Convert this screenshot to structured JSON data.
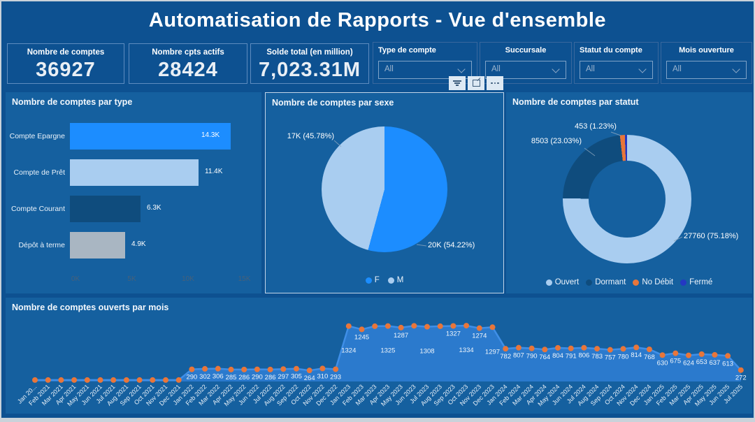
{
  "header": {
    "title": "Automatisation de Rapports - Vue d'ensemble"
  },
  "kpis": [
    {
      "label": "Nombre de comptes",
      "value": "36927"
    },
    {
      "label": "Nombre cpts actifs",
      "value": "28424"
    },
    {
      "label": "Solde total (en million)",
      "value": "7,023.31M"
    }
  ],
  "filters": [
    {
      "label": "Type de compte",
      "value": "All"
    },
    {
      "label": "Succursale",
      "value": "All"
    },
    {
      "label": "Statut du compte",
      "value": "All"
    },
    {
      "label": "Mois ouverture",
      "value": "All"
    }
  ],
  "toolbar": {
    "icons": [
      "filter-icon",
      "focus-mode-icon",
      "more-options-icon"
    ]
  },
  "colors": {
    "page_bg": "#0d5191",
    "panel_bg": "#15609f",
    "bright_blue": "#1c8dff",
    "light_blue": "#a9cdf0",
    "dark_navy": "#0f4c7d",
    "gray": "#a9b6c2",
    "orange": "#e8763a",
    "deep_blue": "#2438c3",
    "line_blue": "#3f8fe8",
    "area_fill": "#2b7acd"
  },
  "chart_data": [
    {
      "type": "bar",
      "title": "Nombre de comptes par type",
      "orientation": "horizontal",
      "categories": [
        "Compte Epargne",
        "Compte de Prêt",
        "Compte Courant",
        "Dépôt à terme"
      ],
      "values": [
        14300,
        11400,
        6300,
        4900
      ],
      "value_labels": [
        "14.3K",
        "11.4K",
        "6.3K",
        "4.9K"
      ],
      "bar_colors": [
        "#1c8dff",
        "#a9cdf0",
        "#0f4c7d",
        "#a9b6c2"
      ],
      "x_ticks": [
        "0K",
        "5K",
        "10K",
        "15K"
      ],
      "xlim": [
        0,
        15500
      ],
      "grid": false
    },
    {
      "type": "pie",
      "title": "Nombre de comptes par sexe",
      "slices": [
        {
          "name": "F",
          "value": "20K",
          "pct": 54.22,
          "label": "20K (54.22%)",
          "color": "#1c8dff"
        },
        {
          "name": "M",
          "value": "17K",
          "pct": 45.78,
          "label": "17K (45.78%)",
          "color": "#a9cdf0"
        }
      ],
      "legend_position": "bottom"
    },
    {
      "type": "donut",
      "title": "Nombre de comptes par statut",
      "slices": [
        {
          "name": "Ouvert",
          "value": "27760",
          "pct": 75.18,
          "label": "27760 (75.18%)",
          "color": "#a9cdf0"
        },
        {
          "name": "Dormant",
          "value": "8503",
          "pct": 23.03,
          "label": "8503 (23.03%)",
          "color": "#0f4c7d"
        },
        {
          "name": "No Débit",
          "value": "453",
          "pct": 1.23,
          "label": "453 (1.23%)",
          "color": "#e8763a"
        },
        {
          "name": "Fermé",
          "value": "",
          "pct": 0.56,
          "label": "",
          "color": "#2438c3"
        }
      ],
      "legend_position": "bottom"
    },
    {
      "type": "area-line",
      "title": "Nombre de comptes ouverts par mois",
      "x": [
        "Jan 20...",
        "Feb 2021",
        "Mar 2021",
        "Apr 2021",
        "May 2021",
        "Jun 2021",
        "Jul 2021",
        "Aug 2021",
        "Sep 2021",
        "Oct 2021",
        "Nov 2021",
        "Dec 2021",
        "Jan 2022",
        "Feb 2022",
        "Mar 2022",
        "Apr 2022",
        "May 2022",
        "Jun 2022",
        "Jul 2022",
        "Aug 2022",
        "Sep 2022",
        "Oct 2022",
        "Nov 2022",
        "Dec 2022",
        "Jan 2023",
        "Feb 2023",
        "Mar 2023",
        "Apr 2023",
        "May 2023",
        "Jun 2023",
        "Jul 2023",
        "Aug 2023",
        "Sep 2023",
        "Oct 2023",
        "Nov 2023",
        "Dec 2023",
        "Jan 2024",
        "Feb 2024",
        "Mar 2024",
        "Apr 2024",
        "May 2024",
        "Jun 2024",
        "Jul 2024",
        "Aug 2024",
        "Sep 2024",
        "Oct 2024",
        "Nov 2024",
        "Dec 2024",
        "Jan 2025",
        "Feb 2025",
        "Mar 2025",
        "Apr 2025",
        "May 2025",
        "Jun 2025",
        "Jul 2025"
      ],
      "values": [
        35,
        35,
        35,
        35,
        35,
        35,
        35,
        35,
        35,
        35,
        35,
        35,
        290,
        302,
        306,
        285,
        286,
        290,
        286,
        297,
        305,
        264,
        310,
        293,
        1324,
        1245,
        1320,
        1325,
        1287,
        1330,
        1308,
        1320,
        1327,
        1334,
        1274,
        1297,
        782,
        807,
        790,
        764,
        804,
        791,
        806,
        783,
        757,
        780,
        814,
        768,
        630,
        675,
        624,
        653,
        637,
        613,
        272
      ],
      "point_labels": [
        "",
        "",
        "",
        "",
        "",
        "",
        "",
        "",
        "",
        "",
        "",
        "",
        "290",
        "302",
        "306",
        "285",
        "286",
        "290",
        "286",
        "297",
        "305",
        "264",
        "310",
        "293",
        "1324",
        "1245",
        "",
        "1325",
        "1287",
        "",
        "1308",
        "",
        "1327",
        "1334",
        "1274",
        "1297",
        "782",
        "807",
        "790",
        "764",
        "804",
        "791",
        "806",
        "783",
        "757",
        "780",
        "814",
        "768",
        "630",
        "675",
        "624",
        "653",
        "637",
        "613",
        "272"
      ],
      "far_label_indices": [
        24,
        27,
        30,
        33,
        35
      ],
      "unlabeled_points_estimated": true,
      "ylim": [
        0,
        1400
      ],
      "grid": false
    }
  ]
}
